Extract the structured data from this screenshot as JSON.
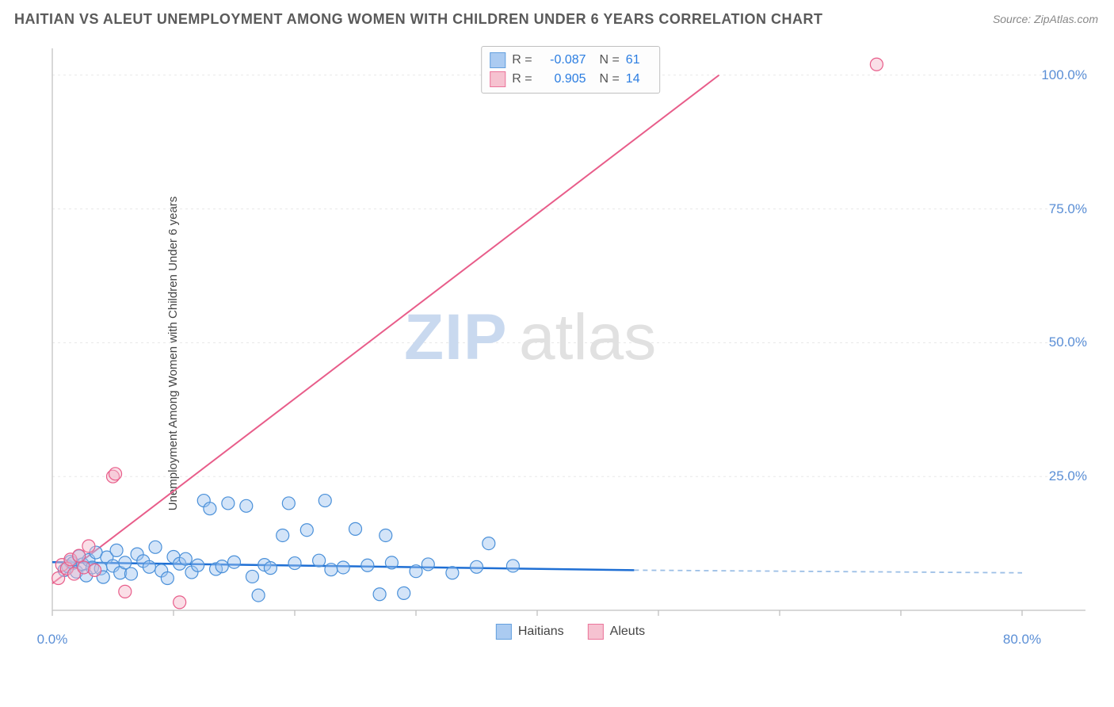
{
  "title": "HAITIAN VS ALEUT UNEMPLOYMENT AMONG WOMEN WITH CHILDREN UNDER 6 YEARS CORRELATION CHART",
  "source": "Source: ZipAtlas.com",
  "ylabel": "Unemployment Among Women with Children Under 6 years",
  "watermark": {
    "part1": "ZIP",
    "part2": "atlas"
  },
  "chart": {
    "type": "scatter-correlation",
    "background_color": "#ffffff",
    "grid_color": "#e8e8e8",
    "axis_color": "#cccccc",
    "tick_color": "#bbbbbb",
    "xlim": [
      0,
      80
    ],
    "ylim": [
      0,
      105
    ],
    "ytick_step": 25,
    "yticks": [
      {
        "value": 100,
        "label": "100.0%"
      },
      {
        "value": 75,
        "label": "75.0%"
      },
      {
        "value": 50,
        "label": "50.0%"
      },
      {
        "value": 25,
        "label": "25.0%"
      }
    ],
    "xticks": [
      {
        "value": 0,
        "label": "0.0%"
      },
      {
        "value": 80,
        "label": "80.0%"
      }
    ],
    "x_tick_marks": [
      0,
      10,
      20,
      30,
      40,
      50,
      60,
      70,
      80
    ],
    "marker_radius": 8,
    "marker_stroke_width": 1.2,
    "series": [
      {
        "name": "Haitians",
        "color_fill": "#9dc3ef",
        "color_stroke": "#4a90d9",
        "fill_opacity": 0.45,
        "trend": {
          "x1": 0,
          "y1": 9.0,
          "x2": 48,
          "y2": 7.5,
          "extrap_x2": 80,
          "extrap_y2": 7.0,
          "solid_color": "#1f6fd4",
          "solid_width": 2.5,
          "dash_color": "#9cbfe6",
          "dash_width": 1.8,
          "dash": "6,5"
        },
        "stats": {
          "R": "-0.087",
          "N": "61"
        },
        "points": [
          [
            1,
            7.5
          ],
          [
            1.3,
            8.2
          ],
          [
            1.5,
            9.1
          ],
          [
            1.7,
            8.8
          ],
          [
            2,
            7.2
          ],
          [
            2.2,
            10.1
          ],
          [
            2.5,
            8.6
          ],
          [
            2.8,
            6.5
          ],
          [
            3,
            9.4
          ],
          [
            3.3,
            8.0
          ],
          [
            3.6,
            10.8
          ],
          [
            4,
            7.8
          ],
          [
            4.2,
            6.2
          ],
          [
            4.5,
            9.9
          ],
          [
            5,
            8.3
          ],
          [
            5.3,
            11.2
          ],
          [
            5.6,
            7.0
          ],
          [
            6,
            8.9
          ],
          [
            6.5,
            6.8
          ],
          [
            7,
            10.5
          ],
          [
            7.5,
            9.2
          ],
          [
            8,
            8.1
          ],
          [
            8.5,
            11.8
          ],
          [
            9,
            7.4
          ],
          [
            9.5,
            6.0
          ],
          [
            10,
            10.0
          ],
          [
            10.5,
            8.7
          ],
          [
            11,
            9.6
          ],
          [
            11.5,
            7.1
          ],
          [
            12,
            8.4
          ],
          [
            12.5,
            20.5
          ],
          [
            13,
            19.0
          ],
          [
            13.5,
            7.7
          ],
          [
            14,
            8.2
          ],
          [
            14.5,
            20.0
          ],
          [
            15,
            9.0
          ],
          [
            16,
            19.5
          ],
          [
            16.5,
            6.3
          ],
          [
            17,
            2.8
          ],
          [
            17.5,
            8.5
          ],
          [
            18,
            7.9
          ],
          [
            19,
            14.0
          ],
          [
            19.5,
            20.0
          ],
          [
            20,
            8.8
          ],
          [
            21,
            15.0
          ],
          [
            22,
            9.3
          ],
          [
            22.5,
            20.5
          ],
          [
            23,
            7.6
          ],
          [
            24,
            8.0
          ],
          [
            25,
            15.2
          ],
          [
            26,
            8.4
          ],
          [
            27,
            3.0
          ],
          [
            27.5,
            14.0
          ],
          [
            28,
            8.9
          ],
          [
            29,
            3.2
          ],
          [
            30,
            7.3
          ],
          [
            31,
            8.6
          ],
          [
            33,
            7.0
          ],
          [
            35,
            8.1
          ],
          [
            36,
            12.5
          ],
          [
            38,
            8.3
          ]
        ]
      },
      {
        "name": "Aleuts",
        "color_fill": "#f5b8c9",
        "color_stroke": "#e85d8a",
        "fill_opacity": 0.45,
        "trend": {
          "x1": 0,
          "y1": 5.0,
          "x2": 55,
          "y2": 100,
          "extrap_x2": 55,
          "extrap_y2": 100,
          "solid_color": "#e85d8a",
          "solid_width": 2,
          "dash_color": "#e85d8a",
          "dash_width": 2,
          "dash": "none"
        },
        "stats": {
          "R": "0.905",
          "N": "14"
        },
        "points": [
          [
            0.5,
            6.0
          ],
          [
            0.8,
            8.5
          ],
          [
            1.2,
            7.8
          ],
          [
            1.5,
            9.5
          ],
          [
            1.8,
            6.8
          ],
          [
            2.2,
            10.2
          ],
          [
            2.6,
            8.0
          ],
          [
            3.0,
            12.0
          ],
          [
            3.5,
            7.5
          ],
          [
            5,
            25.0
          ],
          [
            5.2,
            25.5
          ],
          [
            6.0,
            3.5
          ],
          [
            10.5,
            1.5
          ],
          [
            68,
            102
          ]
        ]
      }
    ],
    "legend_bottom": [
      {
        "swatch_fill": "#9dc3ef",
        "swatch_stroke": "#4a90d9",
        "label": "Haitians"
      },
      {
        "swatch_fill": "#f5b8c9",
        "swatch_stroke": "#e85d8a",
        "label": "Aleuts"
      }
    ]
  },
  "title_fontsize": 18,
  "label_fontsize": 15,
  "tick_fontsize": 17
}
